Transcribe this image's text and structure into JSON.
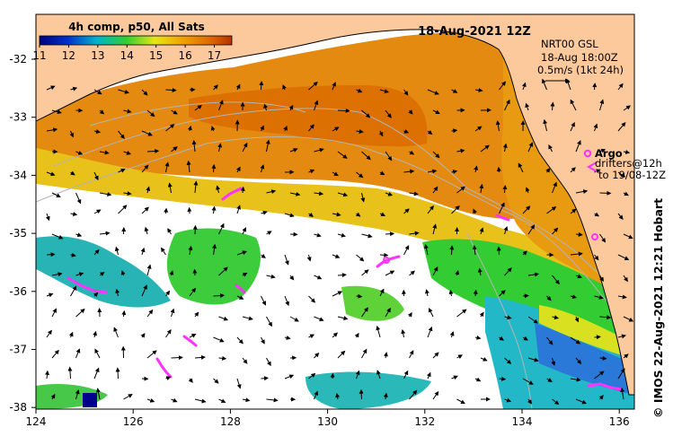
{
  "title": {
    "product": "4h comp, p50, All Sats",
    "datetime": "18-Aug-2021 12Z"
  },
  "colorbar": {
    "ticks": [
      "11",
      "12",
      "13",
      "14",
      "15",
      "16",
      "17"
    ],
    "range": [
      11,
      17.6
    ]
  },
  "currents": {
    "line1": "NRT00 GSL",
    "line2": "18-Aug 18:00Z",
    "line3": "0.5m/s (1kt 24h)"
  },
  "legend": {
    "argo": "Argo",
    "drifters1": "drifters@12h",
    "drifters2": "to 19/08-12Z"
  },
  "credit": "© IMOS 22-Aug-2021 12:21 Hobart",
  "axes": {
    "x_ticks": [
      "124",
      "126",
      "128",
      "130",
      "132",
      "134",
      "136"
    ],
    "y_ticks": [
      "-32",
      "-33",
      "-34",
      "-35",
      "-36",
      "-37",
      "-38"
    ]
  },
  "colors": {
    "land": "#fcc99c",
    "cloud": "#ffffff",
    "argo": "#ff33ff"
  }
}
